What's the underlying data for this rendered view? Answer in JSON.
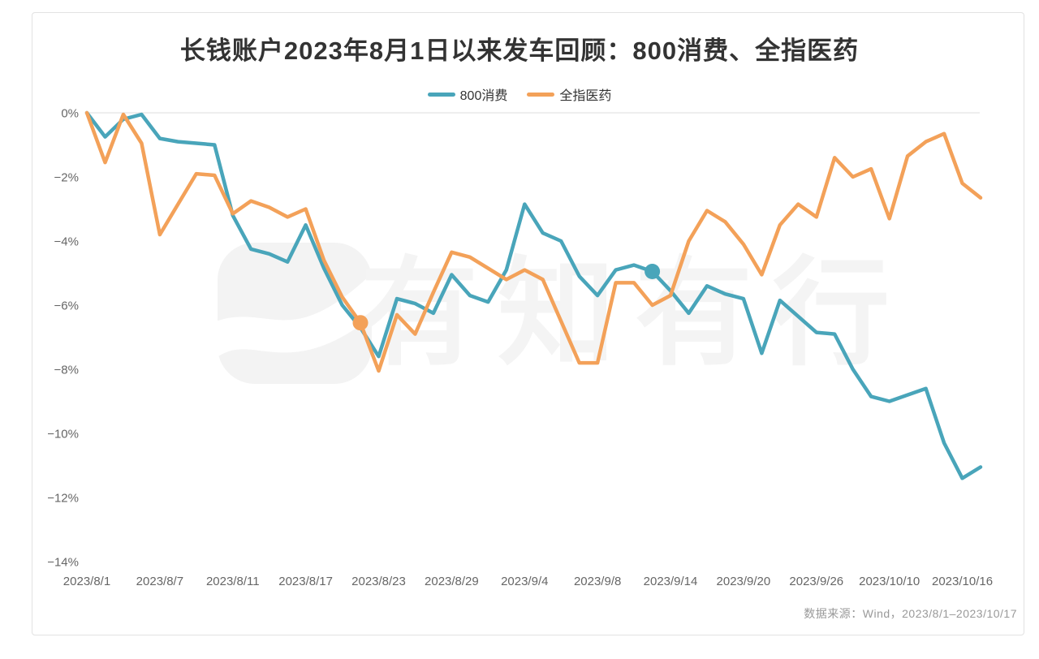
{
  "chart_data": {
    "type": "line",
    "title": "长钱账户2023年8月1日以来发车回顾：800消费、全指医药",
    "source": "数据来源：Wind，2023/8/1–2023/10/17",
    "watermark": "有知有行",
    "legend_position": "top-center",
    "grid": "only 0% baseline",
    "ylim": [
      -14,
      0
    ],
    "y_ticks": [
      {
        "label": "0%",
        "value": 0
      },
      {
        "label": "−2%",
        "value": -2
      },
      {
        "label": "−4%",
        "value": -4
      },
      {
        "label": "−6%",
        "value": -6
      },
      {
        "label": "−8%",
        "value": -8
      },
      {
        "label": "−10%",
        "value": -10
      },
      {
        "label": "−12%",
        "value": -12
      },
      {
        "label": "−14%",
        "value": -14
      }
    ],
    "x_ticks": [
      {
        "label": "2023/8/1",
        "index": 0
      },
      {
        "label": "2023/8/7",
        "index": 4
      },
      {
        "label": "2023/8/11",
        "index": 8
      },
      {
        "label": "2023/8/17",
        "index": 12
      },
      {
        "label": "2023/8/23",
        "index": 16
      },
      {
        "label": "2023/8/29",
        "index": 20
      },
      {
        "label": "2023/9/4",
        "index": 24
      },
      {
        "label": "2023/9/8",
        "index": 28
      },
      {
        "label": "2023/9/14",
        "index": 32
      },
      {
        "label": "2023/9/20",
        "index": 36
      },
      {
        "label": "2023/9/26",
        "index": 40
      },
      {
        "label": "2023/10/10",
        "index": 44
      },
      {
        "label": "2023/10/16",
        "index": 48
      }
    ],
    "dates": [
      "2023/8/1",
      "2023/8/2",
      "2023/8/3",
      "2023/8/4",
      "2023/8/7",
      "2023/8/8",
      "2023/8/9",
      "2023/8/10",
      "2023/8/11",
      "2023/8/14",
      "2023/8/15",
      "2023/8/16",
      "2023/8/17",
      "2023/8/18",
      "2023/8/21",
      "2023/8/22",
      "2023/8/23",
      "2023/8/24",
      "2023/8/25",
      "2023/8/28",
      "2023/8/29",
      "2023/8/30",
      "2023/8/31",
      "2023/9/1",
      "2023/9/4",
      "2023/9/5",
      "2023/9/6",
      "2023/9/7",
      "2023/9/8",
      "2023/9/11",
      "2023/9/12",
      "2023/9/13",
      "2023/9/14",
      "2023/9/15",
      "2023/9/18",
      "2023/9/19",
      "2023/9/20",
      "2023/9/21",
      "2023/9/22",
      "2023/9/25",
      "2023/9/26",
      "2023/9/27",
      "2023/9/28",
      "2023/10/9",
      "2023/10/10",
      "2023/10/11",
      "2023/10/12",
      "2023/10/13",
      "2023/10/16",
      "2023/10/17"
    ],
    "series": [
      {
        "name": "800消费",
        "color": "#49A5BA",
        "values": [
          0,
          -0.75,
          -0.2,
          -0.05,
          -0.8,
          -0.9,
          -0.95,
          -1.0,
          -3.2,
          -4.25,
          -4.4,
          -4.65,
          -3.5,
          -4.85,
          -6.0,
          -6.7,
          -7.6,
          -5.8,
          -5.95,
          -6.25,
          -5.05,
          -5.7,
          -5.9,
          -4.9,
          -2.85,
          -3.75,
          -4.0,
          -5.1,
          -5.7,
          -4.9,
          -4.75,
          -4.95,
          -5.55,
          -6.25,
          -5.4,
          -5.65,
          -5.8,
          -7.5,
          -5.85,
          -6.35,
          -6.85,
          -6.9,
          -8.0,
          -8.85,
          -9.0,
          -8.8,
          -8.6,
          -10.3,
          -11.4,
          -11.05
        ]
      },
      {
        "name": "全指医药",
        "color": "#F3A159",
        "values": [
          0,
          -1.55,
          -0.05,
          -0.95,
          -3.8,
          -2.85,
          -1.9,
          -1.95,
          -3.15,
          -2.75,
          -2.95,
          -3.25,
          -3.0,
          -4.6,
          -5.75,
          -6.55,
          -8.05,
          -6.3,
          -6.9,
          -5.6,
          -4.35,
          -4.5,
          -4.85,
          -5.2,
          -4.9,
          -5.2,
          -6.5,
          -7.8,
          -7.8,
          -5.3,
          -5.3,
          -6.0,
          -5.7,
          -4.0,
          -3.05,
          -3.4,
          -4.1,
          -5.05,
          -3.5,
          -2.85,
          -3.25,
          -1.4,
          -2.0,
          -1.75,
          -3.3,
          -1.35,
          -0.9,
          -0.65,
          -2.2,
          -2.65
        ]
      }
    ],
    "markers": [
      {
        "series": "全指医药",
        "date": "2023/8/22",
        "value": -6.55
      },
      {
        "series": "800消费",
        "date": "2023/9/13",
        "value": -4.95
      }
    ]
  }
}
